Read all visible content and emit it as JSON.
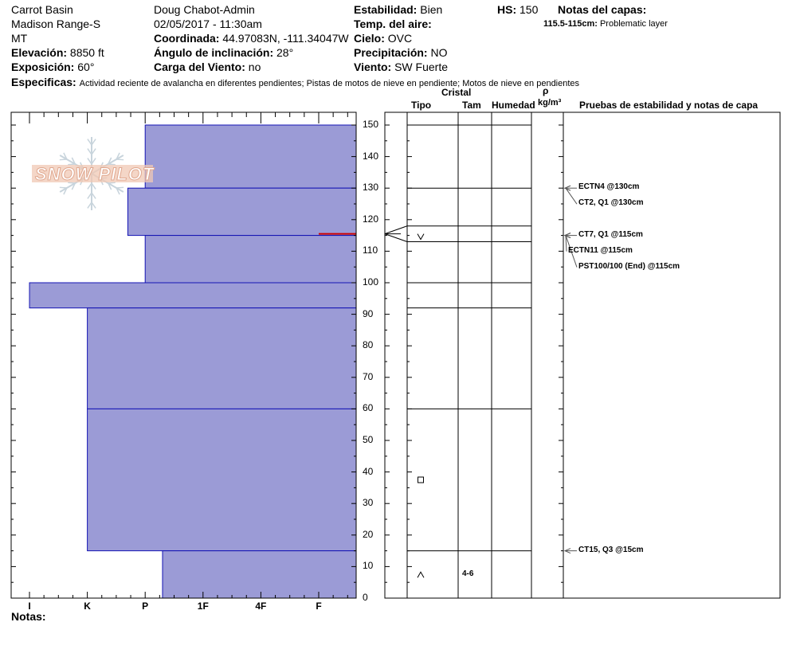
{
  "header": {
    "location": "Carrot Basin",
    "range": "Madison Range-S",
    "state": "MT",
    "elevation_label": "Elevación:",
    "elevation_value": "8850 ft",
    "aspect_label": "Exposición:",
    "aspect_value": "60°",
    "observer": "Doug Chabot-Admin",
    "datetime": "02/05/2017 - 11:30am",
    "coord_label": "Coordinada:",
    "coord_value": "44.97083N, -111.34047W",
    "slope_label": "Ángulo de inclinación:",
    "slope_value": "28°",
    "windload_label": "Carga del Viento:",
    "windload_value": "no",
    "stability_label": "Estabilidad:",
    "stability_value": "Bien",
    "airtemp_label": "Temp. del aire:",
    "sky_label": "Cielo:",
    "sky_value": "OVC",
    "precip_label": "Precipitación:",
    "precip_value": "NO",
    "wind_label": "Viento:",
    "wind_value": "SW Fuerte",
    "hs_label": "HS:",
    "hs_value": "150",
    "layer_notes_label": "Notas del capas:",
    "layer_notes_range": "115.5-115cm:",
    "layer_notes_text": "Problematic layer",
    "specifics_label": "Especificas:",
    "specifics_value": "Actividad reciente de avalancha en diferentes pendientes;  Pistas de motos de nieve en pendiente;  Motos de nieve en pendientes"
  },
  "footer": {
    "notes_label": "Notas:"
  },
  "logo": {
    "text": "SNOW PILOT"
  },
  "columns": {
    "crystal": "Cristal",
    "type": "Tipo",
    "size": "Tam",
    "moisture": "Humedad",
    "rho": "ρ",
    "density_unit": "kg/m³",
    "tests": "Pruebas de estabilidad y notas de capa"
  },
  "chart_data": {
    "type": "bar",
    "orientation": "horizontal",
    "y_range": [
      0,
      150
    ],
    "y_ticks": [
      0,
      10,
      20,
      30,
      40,
      50,
      60,
      70,
      80,
      90,
      100,
      110,
      120,
      130,
      140,
      150
    ],
    "hardness_ticks": [
      "I",
      "K",
      "P",
      "1F",
      "4F",
      "F"
    ],
    "hardness_note": "hardness index: I=6 (leftmost) ... F=1",
    "hardness_profile": [
      {
        "bottom": 130,
        "top": 150,
        "hardness": 4
      },
      {
        "bottom": 115,
        "top": 130,
        "hardness": 4.3
      },
      {
        "bottom": 100,
        "top": 115,
        "hardness": 4
      },
      {
        "bottom": 92,
        "top": 100,
        "hardness": 6
      },
      {
        "bottom": 60,
        "top": 92,
        "hardness": 5
      },
      {
        "bottom": 15,
        "top": 60,
        "hardness": 5
      },
      {
        "bottom": 0,
        "top": 15,
        "hardness": 3.7
      }
    ],
    "problem_layer_depth": 115.5,
    "layer_boundaries": [
      150,
      130,
      118,
      113,
      100,
      92,
      60,
      15
    ],
    "crystals": [
      {
        "depth": 114.5,
        "symbol": "surface-hoar",
        "size": ""
      },
      {
        "depth": 37.5,
        "symbol": "faceted",
        "size": ""
      },
      {
        "depth": 7.5,
        "symbol": "depth-hoar",
        "size": "4-6"
      }
    ],
    "tests": [
      {
        "depth": 130,
        "label": "ECTN4 @130cm"
      },
      {
        "depth": 130,
        "label": "CT2, Q1 @130cm"
      },
      {
        "depth": 115,
        "label": "CT7, Q1 @115cm"
      },
      {
        "depth": 115,
        "label": "ECTN11 @115cm"
      },
      {
        "depth": 115,
        "label": "PST100/100 (End) @115cm"
      },
      {
        "depth": 15,
        "label": "CT15, Q3 @15cm"
      }
    ],
    "colors": {
      "fill": "#9b9bd6",
      "edge": "#1414b4",
      "problem": "#cc0000"
    }
  }
}
